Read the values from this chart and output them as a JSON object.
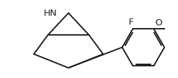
{
  "bg_color": "#ffffff",
  "line_color": "#1a1a1a",
  "line_width": 1.4,
  "label_color": "#1a1a1a",
  "F_label": "F",
  "O_label": "O",
  "NH_label": "HN",
  "font_size": 9.5
}
